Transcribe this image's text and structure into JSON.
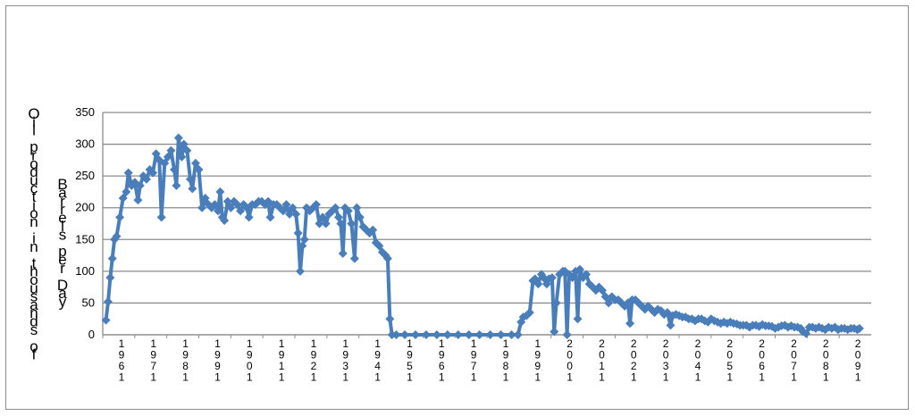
{
  "chart_data": {
    "type": "line",
    "title": "",
    "ylabel_outer": "Oil production in thousands of",
    "ylabel_inner": "Barrels per Day",
    "xlabel": "",
    "ylim": [
      0,
      350
    ],
    "yticks": [
      0,
      50,
      100,
      150,
      200,
      250,
      300,
      350
    ],
    "grid": true,
    "legend": "none",
    "color": "#4a7ebb",
    "x_tick_labels": [
      "1961",
      "1971",
      "1981",
      "1991",
      "1901",
      "1911",
      "1921",
      "1931",
      "1941",
      "1951",
      "1961",
      "1971",
      "1981",
      "1991",
      "2001",
      "2011",
      "2021",
      "2031",
      "2041",
      "2051",
      "2061",
      "2071",
      "2081",
      "2091"
    ],
    "series": [
      {
        "values": [
          [
            1965.0,
            23
          ],
          [
            1965.2,
            52
          ],
          [
            1965.4,
            90
          ],
          [
            1965.6,
            120
          ],
          [
            1965.8,
            150
          ],
          [
            1966.0,
            155
          ],
          [
            1966.3,
            185
          ],
          [
            1966.6,
            215
          ],
          [
            1966.9,
            225
          ],
          [
            1967.1,
            255
          ],
          [
            1967.4,
            235
          ],
          [
            1967.7,
            240
          ],
          [
            1968.0,
            212
          ],
          [
            1968.2,
            235
          ],
          [
            1968.5,
            250
          ],
          [
            1968.8,
            245
          ],
          [
            1969.1,
            260
          ],
          [
            1969.4,
            255
          ],
          [
            1969.7,
            285
          ],
          [
            1970.0,
            275
          ],
          [
            1970.2,
            185
          ],
          [
            1970.5,
            270
          ],
          [
            1970.8,
            280
          ],
          [
            1971.1,
            290
          ],
          [
            1971.4,
            260
          ],
          [
            1971.6,
            235
          ],
          [
            1971.8,
            310
          ],
          [
            1972.1,
            280
          ],
          [
            1972.3,
            300
          ],
          [
            1972.6,
            290
          ],
          [
            1972.9,
            245
          ],
          [
            1973.1,
            230
          ],
          [
            1973.4,
            270
          ],
          [
            1973.7,
            260
          ],
          [
            1974.0,
            200
          ],
          [
            1974.3,
            215
          ],
          [
            1974.6,
            205
          ],
          [
            1974.9,
            200
          ],
          [
            1975.2,
            205
          ],
          [
            1975.5,
            195
          ],
          [
            1975.7,
            225
          ],
          [
            1975.9,
            185
          ],
          [
            1976.1,
            180
          ],
          [
            1976.4,
            210
          ],
          [
            1976.7,
            200
          ],
          [
            1977.0,
            210
          ],
          [
            1977.3,
            205
          ],
          [
            1977.6,
            195
          ],
          [
            1977.9,
            205
          ],
          [
            1978.2,
            200
          ],
          [
            1978.4,
            185
          ],
          [
            1978.7,
            205
          ],
          [
            1979.0,
            205
          ],
          [
            1979.3,
            210
          ],
          [
            1979.6,
            210
          ],
          [
            1979.9,
            205
          ],
          [
            1980.2,
            210
          ],
          [
            1980.4,
            185
          ],
          [
            1980.7,
            205
          ],
          [
            1981.0,
            205
          ],
          [
            1981.3,
            200
          ],
          [
            1981.6,
            195
          ],
          [
            1981.9,
            205
          ],
          [
            1982.2,
            190
          ],
          [
            1982.5,
            200
          ],
          [
            1982.8,
            190
          ],
          [
            1983.0,
            160
          ],
          [
            1983.2,
            100
          ],
          [
            1983.4,
            140
          ],
          [
            1983.6,
            150
          ],
          [
            1983.8,
            200
          ],
          [
            1984.1,
            195
          ],
          [
            1984.4,
            200
          ],
          [
            1984.7,
            205
          ],
          [
            1985.0,
            175
          ],
          [
            1985.3,
            185
          ],
          [
            1985.6,
            175
          ],
          [
            1985.9,
            190
          ],
          [
            1986.2,
            195
          ],
          [
            1986.5,
            200
          ],
          [
            1986.8,
            185
          ],
          [
            1987.0,
            175
          ],
          [
            1987.2,
            128
          ],
          [
            1987.4,
            200
          ],
          [
            1987.7,
            195
          ],
          [
            1988.0,
            175
          ],
          [
            1988.3,
            120
          ],
          [
            1988.5,
            200
          ],
          [
            1988.8,
            185
          ],
          [
            1989.1,
            170
          ],
          [
            1989.4,
            165
          ],
          [
            1989.7,
            160
          ],
          [
            1990.0,
            165
          ],
          [
            1990.3,
            145
          ],
          [
            1990.6,
            140
          ],
          [
            1990.9,
            130
          ],
          [
            1991.2,
            125
          ],
          [
            1991.4,
            120
          ],
          [
            1991.6,
            25
          ],
          [
            1991.8,
            0
          ],
          [
            1992.2,
            0
          ],
          [
            1993.0,
            0
          ],
          [
            1994.0,
            0
          ],
          [
            1995.0,
            0
          ],
          [
            1996.0,
            0
          ],
          [
            1997.0,
            0
          ],
          [
            1998.0,
            0
          ],
          [
            1999.0,
            0
          ],
          [
            2000.0,
            0
          ],
          [
            2001.0,
            0
          ],
          [
            2002.0,
            0
          ],
          [
            2003.0,
            0
          ],
          [
            2003.6,
            0
          ],
          [
            2003.9,
            20
          ],
          [
            2004.1,
            28
          ],
          [
            2004.4,
            30
          ],
          [
            2004.7,
            35
          ],
          [
            2005.0,
            85
          ],
          [
            2005.2,
            88
          ],
          [
            2005.5,
            80
          ],
          [
            2005.8,
            95
          ],
          [
            2006.0,
            90
          ],
          [
            2006.3,
            80
          ],
          [
            2006.5,
            88
          ],
          [
            2006.8,
            90
          ],
          [
            2007.0,
            5
          ],
          [
            2007.2,
            50
          ],
          [
            2007.5,
            95
          ],
          [
            2007.8,
            100
          ],
          [
            2008.0,
            100
          ],
          [
            2008.2,
            0
          ],
          [
            2008.4,
            95
          ],
          [
            2008.7,
            90
          ],
          [
            2009.0,
            100
          ],
          [
            2009.2,
            25
          ],
          [
            2009.4,
            103
          ],
          [
            2009.7,
            90
          ],
          [
            2010.0,
            95
          ],
          [
            2010.3,
            80
          ],
          [
            2010.6,
            75
          ],
          [
            2010.9,
            70
          ],
          [
            2011.2,
            75
          ],
          [
            2011.5,
            70
          ],
          [
            2011.8,
            60
          ],
          [
            2012.1,
            50
          ],
          [
            2012.4,
            60
          ],
          [
            2012.7,
            55
          ],
          [
            2013.0,
            55
          ],
          [
            2013.3,
            50
          ],
          [
            2013.6,
            45
          ],
          [
            2013.9,
            50
          ],
          [
            2014.1,
            18
          ],
          [
            2014.3,
            55
          ],
          [
            2014.6,
            55
          ],
          [
            2014.9,
            50
          ],
          [
            2015.2,
            45
          ],
          [
            2015.5,
            40
          ],
          [
            2015.8,
            45
          ],
          [
            2016.1,
            40
          ],
          [
            2016.4,
            35
          ],
          [
            2016.7,
            40
          ],
          [
            2017.0,
            38
          ],
          [
            2017.3,
            32
          ],
          [
            2017.6,
            35
          ],
          [
            2017.9,
            15
          ],
          [
            2018.1,
            30
          ],
          [
            2018.4,
            32
          ],
          [
            2018.7,
            30
          ],
          [
            2019.0,
            28
          ],
          [
            2019.3,
            28
          ],
          [
            2019.6,
            25
          ],
          [
            2019.9,
            25
          ],
          [
            2020.2,
            22
          ],
          [
            2020.5,
            25
          ],
          [
            2020.8,
            25
          ],
          [
            2021.1,
            22
          ],
          [
            2021.4,
            20
          ],
          [
            2021.7,
            25
          ],
          [
            2022.0,
            22
          ],
          [
            2022.3,
            20
          ],
          [
            2022.6,
            18
          ],
          [
            2022.9,
            20
          ],
          [
            2023.2,
            18
          ],
          [
            2023.5,
            20
          ],
          [
            2023.8,
            18
          ],
          [
            2024.1,
            17
          ],
          [
            2024.4,
            15
          ],
          [
            2024.7,
            15
          ],
          [
            2025.0,
            15
          ],
          [
            2025.3,
            12
          ],
          [
            2025.6,
            15
          ],
          [
            2025.9,
            15
          ],
          [
            2026.2,
            13
          ],
          [
            2026.5,
            16
          ],
          [
            2026.8,
            14
          ],
          [
            2027.1,
            14
          ],
          [
            2027.4,
            13
          ],
          [
            2027.7,
            10
          ],
          [
            2028.0,
            12
          ],
          [
            2028.3,
            14
          ],
          [
            2028.6,
            15
          ],
          [
            2028.9,
            12
          ],
          [
            2029.2,
            14
          ],
          [
            2029.5,
            12
          ],
          [
            2029.8,
            12
          ],
          [
            2030.1,
            10
          ],
          [
            2030.3,
            5
          ],
          [
            2030.6,
            2
          ],
          [
            2030.9,
            12
          ],
          [
            2031.2,
            12
          ],
          [
            2031.5,
            10
          ],
          [
            2031.8,
            12
          ],
          [
            2032.1,
            10
          ],
          [
            2032.4,
            8
          ],
          [
            2032.7,
            12
          ],
          [
            2033.0,
            10
          ],
          [
            2033.3,
            12
          ],
          [
            2033.6,
            8
          ],
          [
            2033.9,
            10
          ],
          [
            2034.2,
            10
          ],
          [
            2034.5,
            8
          ],
          [
            2034.8,
            10
          ],
          [
            2035.1,
            10
          ],
          [
            2035.4,
            8
          ],
          [
            2035.6,
            10
          ]
        ]
      }
    ]
  }
}
